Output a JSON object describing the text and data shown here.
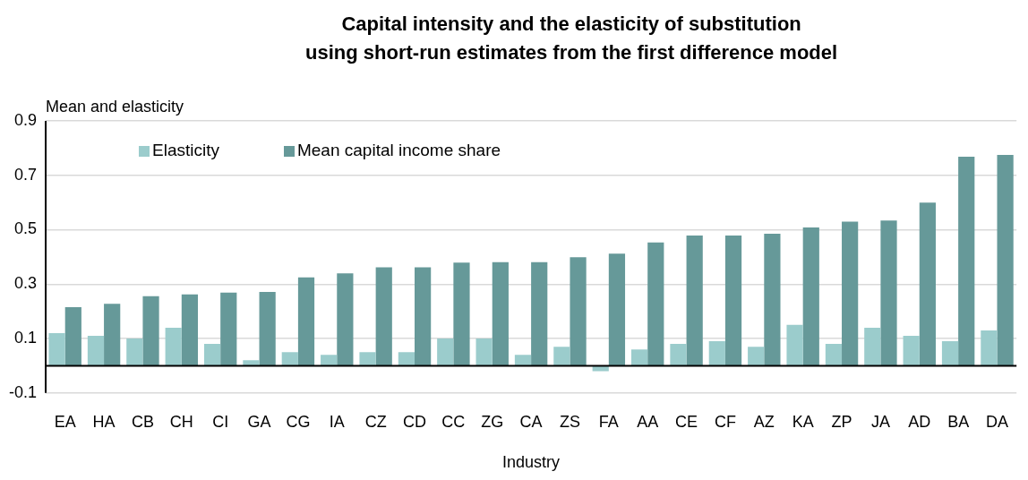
{
  "chart_data": {
    "type": "bar",
    "title": "Capital intensity and the elasticity of substitution\nusing short-run estimates from the first difference model",
    "xlabel": "Industry",
    "ylabel": "Mean and elasticity",
    "categories": [
      "EA",
      "HA",
      "CB",
      "CH",
      "CI",
      "GA",
      "CG",
      "IA",
      "CZ",
      "CD",
      "CC",
      "ZG",
      "CA",
      "ZS",
      "FA",
      "AA",
      "CE",
      "CF",
      "AZ",
      "KA",
      "ZP",
      "JA",
      "AD",
      "BA",
      "DA"
    ],
    "series": [
      {
        "name": "Elasticity",
        "color": "#9bcccc",
        "values": [
          0.12,
          0.11,
          0.1,
          0.14,
          0.08,
          0.02,
          0.05,
          0.04,
          0.05,
          0.05,
          0.1,
          0.1,
          0.04,
          0.07,
          -0.02,
          0.06,
          0.08,
          0.09,
          0.07,
          0.15,
          0.08,
          0.14,
          0.11,
          0.09,
          0.13
        ]
      },
      {
        "name": "Mean capital income share",
        "color": "#669999",
        "values": [
          0.215,
          0.228,
          0.256,
          0.262,
          0.269,
          0.271,
          0.325,
          0.34,
          0.362,
          0.362,
          0.379,
          0.381,
          0.381,
          0.399,
          0.412,
          0.453,
          0.479,
          0.479,
          0.485,
          0.508,
          0.53,
          0.534,
          0.6,
          0.768,
          0.775
        ]
      }
    ],
    "ylim": [
      -0.1,
      0.9
    ],
    "yticks": [
      -0.1,
      0.1,
      0.3,
      0.5,
      0.7,
      0.9
    ],
    "grid": "y",
    "legend": "top left"
  }
}
